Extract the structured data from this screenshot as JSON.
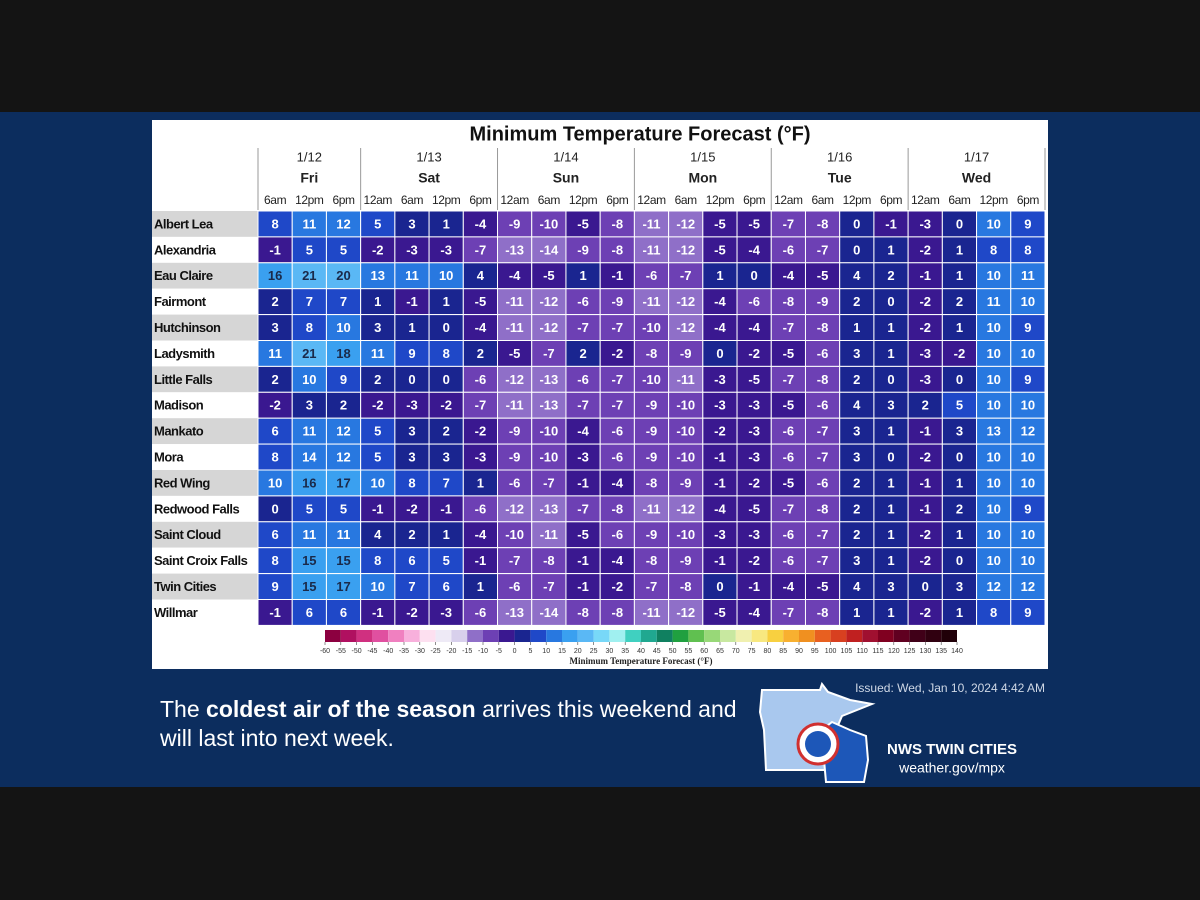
{
  "title": "Minimum Temperature Forecast (°F)",
  "days": [
    {
      "date": "1/12",
      "day": "Fri",
      "times": [
        "6am",
        "12pm",
        "6pm"
      ]
    },
    {
      "date": "1/13",
      "day": "Sat",
      "times": [
        "12am",
        "6am",
        "12pm",
        "6pm"
      ]
    },
    {
      "date": "1/14",
      "day": "Sun",
      "times": [
        "12am",
        "6am",
        "12pm",
        "6pm"
      ]
    },
    {
      "date": "1/15",
      "day": "Mon",
      "times": [
        "12am",
        "6am",
        "12pm",
        "6pm"
      ]
    },
    {
      "date": "1/16",
      "day": "Tue",
      "times": [
        "12am",
        "6am",
        "12pm",
        "6pm"
      ]
    },
    {
      "date": "1/17",
      "day": "Wed",
      "times": [
        "12am",
        "6am",
        "12pm",
        "6pm"
      ]
    }
  ],
  "rows": [
    {
      "name": "Albert Lea",
      "values": [
        8,
        11,
        12,
        5,
        3,
        1,
        -4,
        -9,
        -10,
        -5,
        -8,
        -11,
        -12,
        -5,
        -5,
        -7,
        -8,
        0,
        -1,
        -3,
        0,
        10,
        9
      ]
    },
    {
      "name": "Alexandria",
      "values": [
        -1,
        5,
        5,
        -2,
        -3,
        -3,
        -7,
        -13,
        -14,
        -9,
        -8,
        -11,
        -12,
        -5,
        -4,
        -6,
        -7,
        0,
        1,
        -2,
        1,
        8,
        8
      ]
    },
    {
      "name": "Eau Claire",
      "values": [
        16,
        21,
        20,
        13,
        11,
        10,
        4,
        -4,
        -5,
        1,
        -1,
        -6,
        -7,
        1,
        0,
        -4,
        -5,
        4,
        2,
        -1,
        1,
        10,
        11
      ]
    },
    {
      "name": "Fairmont",
      "values": [
        2,
        7,
        7,
        1,
        -1,
        1,
        -5,
        -11,
        -12,
        -6,
        -9,
        -11,
        -12,
        -4,
        -6,
        -8,
        -9,
        2,
        0,
        -2,
        2,
        11,
        10
      ]
    },
    {
      "name": "Hutchinson",
      "values": [
        3,
        8,
        10,
        3,
        1,
        0,
        -4,
        -11,
        -12,
        -7,
        -7,
        -10,
        -12,
        -4,
        -4,
        -7,
        -8,
        1,
        1,
        -2,
        1,
        10,
        9
      ]
    },
    {
      "name": "Ladysmith",
      "values": [
        11,
        21,
        18,
        11,
        9,
        8,
        2,
        -5,
        -7,
        2,
        -2,
        -8,
        -9,
        0,
        -2,
        -5,
        -6,
        3,
        1,
        -3,
        -2,
        10,
        10
      ]
    },
    {
      "name": "Little Falls",
      "values": [
        2,
        10,
        9,
        2,
        0,
        0,
        -6,
        -12,
        -13,
        -6,
        -7,
        -10,
        -11,
        -3,
        -5,
        -7,
        -8,
        2,
        0,
        -3,
        0,
        10,
        9
      ]
    },
    {
      "name": "Madison",
      "values": [
        -2,
        3,
        2,
        -2,
        -3,
        -2,
        -7,
        -11,
        -13,
        -7,
        -7,
        -9,
        -10,
        -3,
        -3,
        -5,
        -6,
        4,
        3,
        2,
        5,
        10,
        10
      ]
    },
    {
      "name": "Mankato",
      "values": [
        6,
        11,
        12,
        5,
        3,
        2,
        -2,
        -9,
        -10,
        -4,
        -6,
        -9,
        -10,
        -2,
        -3,
        -6,
        -7,
        3,
        1,
        -1,
        3,
        13,
        12
      ]
    },
    {
      "name": "Mora",
      "values": [
        8,
        14,
        12,
        5,
        3,
        3,
        -3,
        -9,
        -10,
        -3,
        -6,
        -9,
        -10,
        -1,
        -3,
        -6,
        -7,
        3,
        0,
        -2,
        0,
        10,
        10
      ]
    },
    {
      "name": "Red Wing",
      "values": [
        10,
        16,
        17,
        10,
        8,
        7,
        1,
        -6,
        -7,
        -1,
        -4,
        -8,
        -9,
        -1,
        -2,
        -5,
        -6,
        2,
        1,
        -1,
        1,
        10,
        10
      ]
    },
    {
      "name": "Redwood Falls",
      "values": [
        0,
        5,
        5,
        -1,
        -2,
        -1,
        -6,
        -12,
        -13,
        -7,
        -8,
        -11,
        -12,
        -4,
        -5,
        -7,
        -8,
        2,
        1,
        -1,
        2,
        10,
        9
      ]
    },
    {
      "name": "Saint Cloud",
      "values": [
        6,
        11,
        11,
        4,
        2,
        1,
        -4,
        -10,
        -11,
        -5,
        -6,
        -9,
        -10,
        -3,
        -3,
        -6,
        -7,
        2,
        1,
        -2,
        1,
        10,
        10
      ]
    },
    {
      "name": "Saint Croix Falls",
      "values": [
        8,
        15,
        15,
        8,
        6,
        5,
        -1,
        -7,
        -8,
        -1,
        -4,
        -8,
        -9,
        -1,
        -2,
        -6,
        -7,
        3,
        1,
        -2,
        0,
        10,
        10
      ]
    },
    {
      "name": "Twin Cities",
      "values": [
        9,
        15,
        17,
        10,
        7,
        6,
        1,
        -6,
        -7,
        -1,
        -2,
        -7,
        -8,
        0,
        -1,
        -4,
        -5,
        4,
        3,
        0,
        3,
        12,
        12
      ]
    },
    {
      "name": "Willmar",
      "values": [
        -1,
        6,
        6,
        -1,
        -2,
        -3,
        -6,
        -13,
        -14,
        -8,
        -8,
        -11,
        -12,
        -5,
        -4,
        -7,
        -8,
        1,
        1,
        -2,
        1,
        8,
        9
      ]
    }
  ],
  "colorbar": {
    "label": "Minimum Temperature Forecast (°F)",
    "ticks": [
      -60,
      -55,
      -50,
      -45,
      -40,
      -35,
      -30,
      -25,
      -20,
      -15,
      -10,
      -5,
      0,
      5,
      10,
      15,
      20,
      25,
      30,
      35,
      40,
      45,
      50,
      55,
      60,
      65,
      70,
      75,
      80,
      85,
      90,
      95,
      100,
      105,
      110,
      115,
      120,
      125,
      130,
      135,
      140
    ],
    "colors": [
      "#8c0040",
      "#b01060",
      "#d03080",
      "#e050a0",
      "#f080c0",
      "#f8b0dc",
      "#fde0f0",
      "#eeeaf6",
      "#d8d0ec",
      "#8f6fc8",
      "#6d40b4",
      "#3a1890",
      "#1a2590",
      "#1f48c8",
      "#2878e0",
      "#3aa0f0",
      "#5ab8f5",
      "#78d8f8",
      "#a0f0f0",
      "#40d0c0",
      "#20a890",
      "#108060",
      "#20a040",
      "#60c050",
      "#98d878",
      "#c8e8a0",
      "#f0f0b0",
      "#f8e880",
      "#f8d040",
      "#f8b030",
      "#f09020",
      "#e86020",
      "#d84020",
      "#c02020",
      "#a01030",
      "#800020",
      "#600020",
      "#400018",
      "#300010",
      "#200008"
    ]
  },
  "caption": {
    "lead": "The",
    "bold": "coldest air of the season",
    "rest": "arrives this weekend and will last into next week."
  },
  "issued": "Issued: Wed, Jan 10, 2024 4:42 AM",
  "office": "NWS TWIN CITIES",
  "url": "weather.gov/mpx"
}
